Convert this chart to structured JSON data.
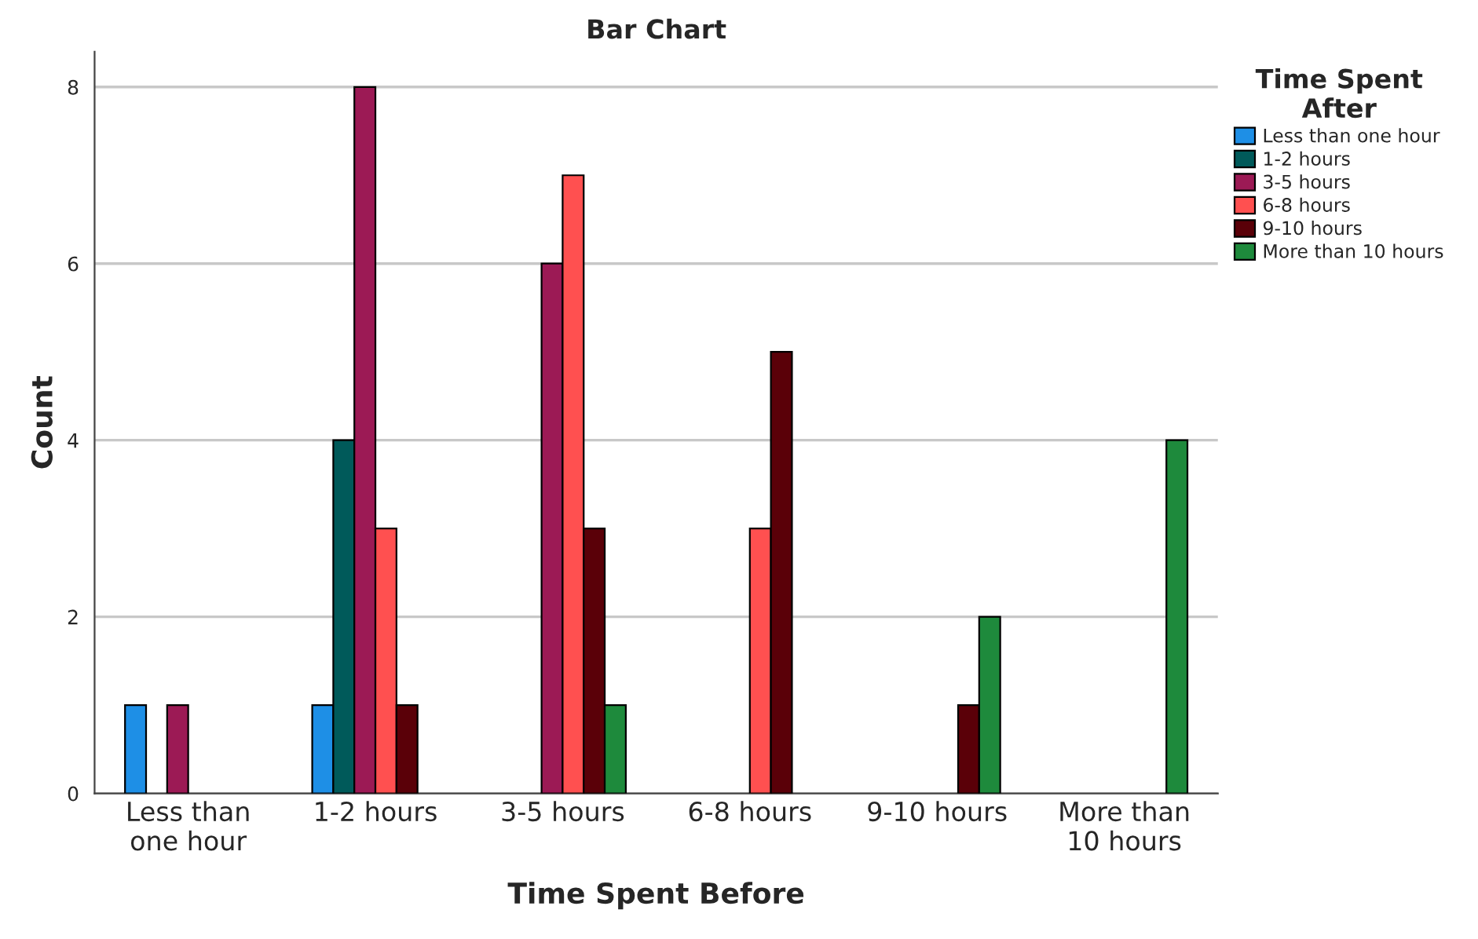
{
  "chart_data": {
    "type": "bar",
    "title": "Bar Chart",
    "xlabel": "Time Spent Before",
    "ylabel": "Count",
    "legend_title": "Time Spent\nAfter",
    "categories": [
      "Less than\none hour",
      "1-2 hours",
      "3-5 hours",
      "6-8 hours",
      "9-10 hours",
      "More than\n10 hours"
    ],
    "series": [
      {
        "name": "Less than one hour",
        "color": "#1e8fe6",
        "values": [
          1,
          1,
          null,
          null,
          null,
          null
        ]
      },
      {
        "name": "1-2 hours",
        "color": "#005a5a",
        "values": [
          null,
          4,
          null,
          null,
          null,
          null
        ]
      },
      {
        "name": "3-5 hours",
        "color": "#9c1a55",
        "values": [
          1,
          8,
          6,
          null,
          null,
          null
        ]
      },
      {
        "name": "6-8 hours",
        "color": "#ff5050",
        "values": [
          null,
          3,
          7,
          3,
          null,
          null
        ]
      },
      {
        "name": "9-10 hours",
        "color": "#5a0008",
        "values": [
          null,
          1,
          3,
          5,
          1,
          null
        ]
      },
      {
        "name": "More than 10 hours",
        "color": "#1e8a3c",
        "values": [
          null,
          null,
          1,
          null,
          2,
          4
        ]
      }
    ],
    "ylim": [
      0,
      8.4
    ],
    "yticks": [
      0,
      2,
      4,
      6,
      8
    ],
    "grid": "y",
    "legend": "right"
  }
}
